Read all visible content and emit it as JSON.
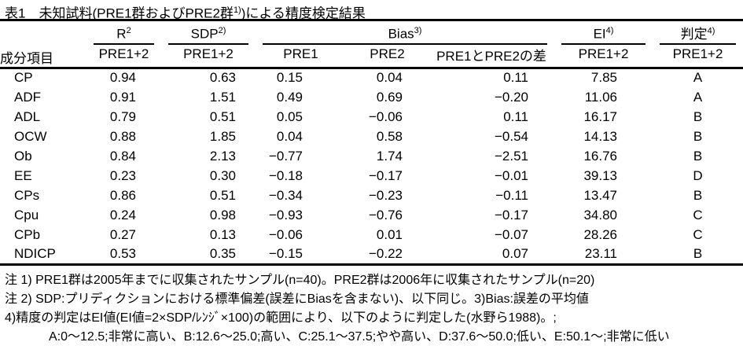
{
  "title": {
    "text": "表1　未知試料(PRE1群およびPRE2群",
    "sup": "1)",
    "suffix": ")による精度検定結果"
  },
  "table": {
    "component_header": "成分項目",
    "groups": [
      {
        "label": "R",
        "sup": "2"
      },
      {
        "label": "SDP",
        "sup": "2)"
      },
      {
        "label": "Bias",
        "sup": "3)"
      },
      {
        "label": "EI",
        "sup": "4)"
      },
      {
        "label": "判定",
        "sup": "4)"
      }
    ],
    "subheaders": [
      "PRE1+2",
      "PRE1+2",
      "PRE1",
      "PRE2",
      "PRE1とPRE2の差",
      "PRE1+2",
      "PRE1+2"
    ],
    "rows": [
      {
        "name": "CP",
        "values": [
          "0.94",
          "0.63",
          "0.15",
          "0.04",
          "0.11",
          "7.85",
          "A"
        ]
      },
      {
        "name": "ADF",
        "values": [
          "0.91",
          "1.51",
          "0.49",
          "0.69",
          "−0.20",
          "11.06",
          "A"
        ]
      },
      {
        "name": "ADL",
        "values": [
          "0.79",
          "0.51",
          "0.05",
          "−0.06",
          "0.11",
          "16.17",
          "B"
        ]
      },
      {
        "name": "OCW",
        "values": [
          "0.88",
          "1.85",
          "0.04",
          "0.58",
          "−0.54",
          "14.13",
          "B"
        ]
      },
      {
        "name": "Ob",
        "values": [
          "0.84",
          "2.13",
          "−0.77",
          "1.74",
          "−2.51",
          "16.76",
          "B"
        ]
      },
      {
        "name": "EE",
        "values": [
          "0.23",
          "0.30",
          "−0.18",
          "−0.17",
          "−0.01",
          "39.13",
          "D"
        ]
      },
      {
        "name": "CPs",
        "values": [
          "0.86",
          "0.51",
          "−0.34",
          "−0.23",
          "−0.11",
          "13.47",
          "B"
        ]
      },
      {
        "name": "Cpu",
        "values": [
          "0.24",
          "0.98",
          "−0.93",
          "−0.76",
          "−0.17",
          "34.80",
          "C"
        ]
      },
      {
        "name": "CPb",
        "values": [
          "0.27",
          "0.13",
          "−0.06",
          "0.01",
          "−0.07",
          "28.26",
          "C"
        ]
      },
      {
        "name": "NDICP",
        "values": [
          "0.53",
          "0.35",
          "−0.15",
          "−0.22",
          "0.07",
          "23.11",
          "B"
        ]
      }
    ]
  },
  "footnotes": [
    "注 1) PRE1群は2005年までに収集されたサンプル(n=40)。PRE2群は2006年に収集されたサンプル(n=20)",
    "注 2) SDP:プリディクションにおける標準偏差(誤差にBiasを含まない)、以下同じ。3)Bias:誤差の平均値",
    "4)精度の判定はEI値(EI値=2×SDP/ﾚﾝｼﾞ×100)の範囲により、以下のように判定した(水野ら1988)。;",
    "A:0～12.5;非常に高い、B:12.6～25.0;高い、C:25.1～37.5;やや高い、D:37.6～50.0;低い、E:50.1～;非常に低い"
  ],
  "colors": {
    "text": "#000000",
    "background": "#ffffff",
    "rule": "#000000"
  }
}
